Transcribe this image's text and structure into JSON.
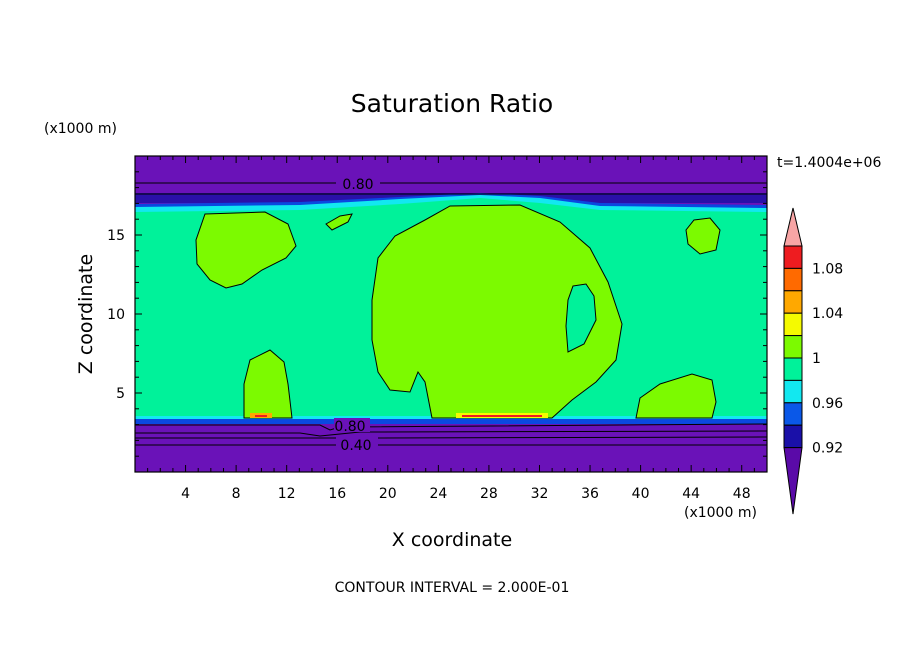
{
  "chart_data": {
    "type": "heatmap",
    "title": "Saturation Ratio",
    "xlabel": "X coordinate",
    "ylabel": "Z coordinate",
    "x_unit": "(x1000 m)",
    "y_unit": "(x1000 m)",
    "time_label": "t=1.4004e+06",
    "footer": "CONTOUR INTERVAL = 2.000E-01",
    "xlim": [
      0,
      50
    ],
    "ylim": [
      0,
      20
    ],
    "x_ticks": [
      4,
      8,
      12,
      16,
      20,
      24,
      28,
      32,
      36,
      40,
      44,
      48
    ],
    "y_ticks": [
      5,
      10,
      15
    ],
    "contour_labels": [
      "0.80",
      "0.80",
      "0.40"
    ],
    "colorbar": {
      "levels": [
        "0.92",
        "0.96",
        "1",
        "1.04",
        "1.08"
      ],
      "colors": [
        "#5a0aa8",
        "#1a10a8",
        "#0a58e8",
        "#12e8f0",
        "#00f29a",
        "#7cfa00",
        "#f5fa00",
        "#ffa800",
        "#ff6a00",
        "#ee1c20",
        "#f8a5a5"
      ]
    },
    "colors": {
      "purple": "#6a12b8",
      "mint": "#00f29a",
      "lime": "#7cfa00",
      "blue": "#0a48e0",
      "cyan": "#12e8f0"
    }
  }
}
